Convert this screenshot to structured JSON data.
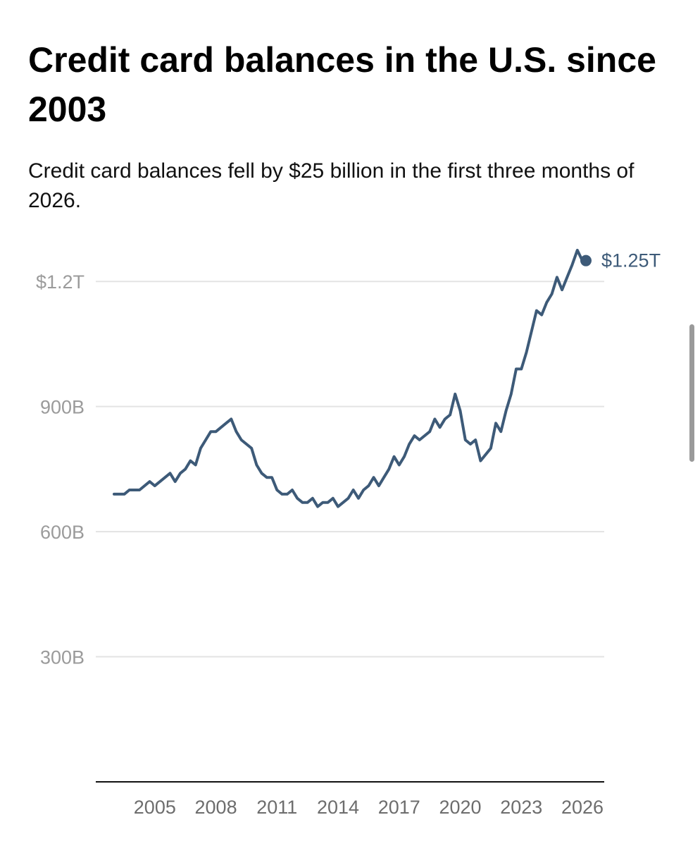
{
  "chart_data": {
    "type": "line",
    "title": "Credit card balances in the U.S. since 2003",
    "subtitle": "Credit card balances fell by $25 billion in the first three months of 2026.",
    "xlabel": "",
    "ylabel": "",
    "x_tick_labels": [
      "2005",
      "2008",
      "2011",
      "2014",
      "2017",
      "2020",
      "2023",
      "2026"
    ],
    "x_ticks": [
      2005,
      2008,
      2011,
      2014,
      2017,
      2020,
      2023,
      2026
    ],
    "y_tick_labels": [
      "300B",
      "600B",
      "900B",
      "$1.2T"
    ],
    "y_ticks": [
      300,
      600,
      900,
      1200
    ],
    "xlim": [
      2003,
      2026.5
    ],
    "ylim": [
      0,
      1290
    ],
    "grid": "horizontal",
    "legend": "none",
    "series": [
      {
        "color": "#3d5a78",
        "points": [
          [
            2003.0,
            690
          ],
          [
            2003.5,
            690
          ],
          [
            2003.75,
            700
          ],
          [
            2004.25,
            700
          ],
          [
            2004.75,
            720
          ],
          [
            2005.0,
            710
          ],
          [
            2005.75,
            740
          ],
          [
            2006.0,
            720
          ],
          [
            2006.25,
            740
          ],
          [
            2006.5,
            750
          ],
          [
            2006.75,
            770
          ],
          [
            2007.0,
            760
          ],
          [
            2007.25,
            800
          ],
          [
            2007.5,
            820
          ],
          [
            2007.75,
            840
          ],
          [
            2008.0,
            840
          ],
          [
            2008.5,
            860
          ],
          [
            2008.75,
            870
          ],
          [
            2009.0,
            840
          ],
          [
            2009.25,
            820
          ],
          [
            2009.75,
            800
          ],
          [
            2010.0,
            760
          ],
          [
            2010.25,
            740
          ],
          [
            2010.5,
            730
          ],
          [
            2010.75,
            730
          ],
          [
            2011.0,
            700
          ],
          [
            2011.25,
            690
          ],
          [
            2011.5,
            690
          ],
          [
            2011.75,
            700
          ],
          [
            2012.0,
            680
          ],
          [
            2012.25,
            670
          ],
          [
            2012.5,
            670
          ],
          [
            2012.75,
            680
          ],
          [
            2013.0,
            660
          ],
          [
            2013.25,
            670
          ],
          [
            2013.5,
            670
          ],
          [
            2013.75,
            680
          ],
          [
            2014.0,
            660
          ],
          [
            2014.5,
            680
          ],
          [
            2014.75,
            700
          ],
          [
            2015.0,
            680
          ],
          [
            2015.25,
            700
          ],
          [
            2015.5,
            710
          ],
          [
            2015.75,
            730
          ],
          [
            2016.0,
            710
          ],
          [
            2016.25,
            730
          ],
          [
            2016.5,
            750
          ],
          [
            2016.75,
            780
          ],
          [
            2017.0,
            760
          ],
          [
            2017.25,
            780
          ],
          [
            2017.5,
            810
          ],
          [
            2017.75,
            830
          ],
          [
            2018.0,
            820
          ],
          [
            2018.5,
            840
          ],
          [
            2018.75,
            870
          ],
          [
            2019.0,
            850
          ],
          [
            2019.25,
            870
          ],
          [
            2019.5,
            880
          ],
          [
            2019.75,
            930
          ],
          [
            2020.0,
            890
          ],
          [
            2020.25,
            820
          ],
          [
            2020.5,
            810
          ],
          [
            2020.75,
            820
          ],
          [
            2021.0,
            770
          ],
          [
            2021.5,
            800
          ],
          [
            2021.75,
            860
          ],
          [
            2022.0,
            840
          ],
          [
            2022.25,
            890
          ],
          [
            2022.5,
            930
          ],
          [
            2022.75,
            990
          ],
          [
            2023.0,
            990
          ],
          [
            2023.25,
            1030
          ],
          [
            2023.5,
            1080
          ],
          [
            2023.75,
            1130
          ],
          [
            2024.0,
            1120
          ],
          [
            2024.25,
            1150
          ],
          [
            2024.5,
            1170
          ],
          [
            2024.75,
            1210
          ],
          [
            2025.0,
            1180
          ],
          [
            2025.25,
            1210
          ],
          [
            2025.5,
            1240
          ],
          [
            2025.75,
            1275
          ],
          [
            2026.0,
            1250
          ]
        ]
      }
    ],
    "annotations": [
      {
        "x": 2026.0,
        "y": 1250,
        "text": "$1.25T"
      }
    ]
  },
  "colors": {
    "line": "#3d5a78",
    "grid": "#e3e3e3",
    "axis": "#111111",
    "y_tick_text": "#9b9b9b",
    "x_tick_text": "#6d6d6d"
  }
}
